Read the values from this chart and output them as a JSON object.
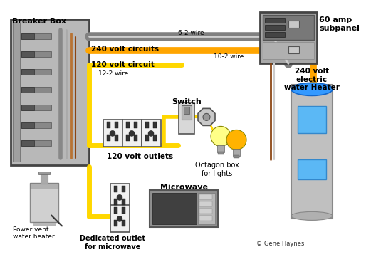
{
  "bg_color": "#ffffff",
  "copyright": "© Gene Haynes",
  "labels": {
    "breaker_box": "Breaker Box",
    "v240_circuits": "240 volt circuits",
    "v120_circuit": "120 volt circuit",
    "wire_12_2": "12-2 wire",
    "wire_6_2": "6-2 wire",
    "wire_10_2": "10-2 wire",
    "switch": "Switch",
    "octagon_box": "Octagon box\nfor lights",
    "v120_outlets": "120 volt outlets",
    "dedicated_outlet": "Dedicated outlet\nfor microwave",
    "power_vent": "Power vent\nwater heater",
    "microwave": "Microwave",
    "subpanel": "60 amp\nsubpanel",
    "water_heater": "240 volt\nelectric\nwater Heater"
  },
  "colors": {
    "wire_gray": "#808080",
    "wire_orange": "#FFA500",
    "wire_yellow": "#FFD700",
    "wire_brown": "#8B4513",
    "wire_copper": "#B87333",
    "breaker_box_bg": "#B8B8B8",
    "breaker_box_border": "#444444",
    "subpanel_bg": "#A8A8A8",
    "outlet_bg": "#f2f2f2",
    "switch_bg": "#e0e0e0",
    "bulb_yellow": "#FFFF88",
    "bulb_amber": "#FFB300",
    "microwave_bg": "#888888",
    "dark_gray": "#444444",
    "mid_gray": "#999999",
    "light_gray": "#cccccc"
  }
}
